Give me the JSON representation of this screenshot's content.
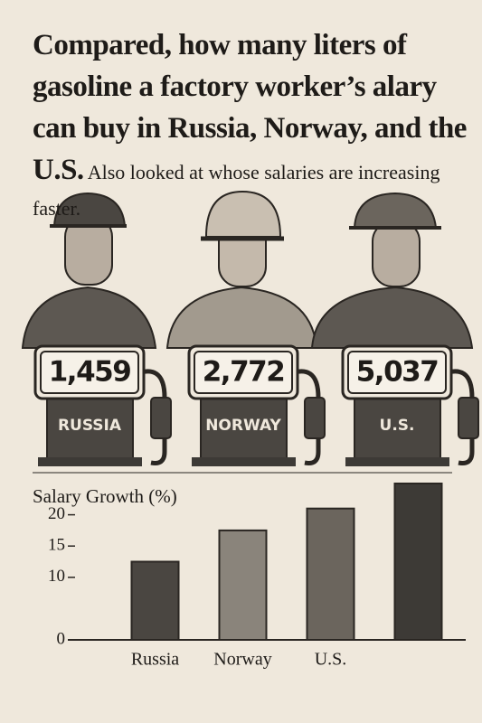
{
  "header": {
    "title": "Compared, how many liters of gasoline a factory worker’s alary can buy in Russia, Norway, and the U.S.",
    "subtitle": "Also looked at whose salaries are increasing faster."
  },
  "pumps": [
    {
      "liters": "1,459",
      "country": "RUSSIA"
    },
    {
      "liters": "2,772",
      "country": "NORWAY"
    },
    {
      "liters": "5,037",
      "country": "U.S."
    }
  ],
  "chart_data": {
    "type": "bar",
    "title": "Salary Growth (%)",
    "categories": [
      "Russia",
      "Norway",
      "U.S.",
      null
    ],
    "values": [
      12.5,
      17.5,
      21,
      25
    ],
    "colors": [
      "#4a4641",
      "#8a847b",
      "#6b655d",
      "#3d3a36"
    ],
    "ylim": [
      0,
      25
    ],
    "yticks": [
      0,
      10,
      15,
      20
    ],
    "grid": false
  }
}
